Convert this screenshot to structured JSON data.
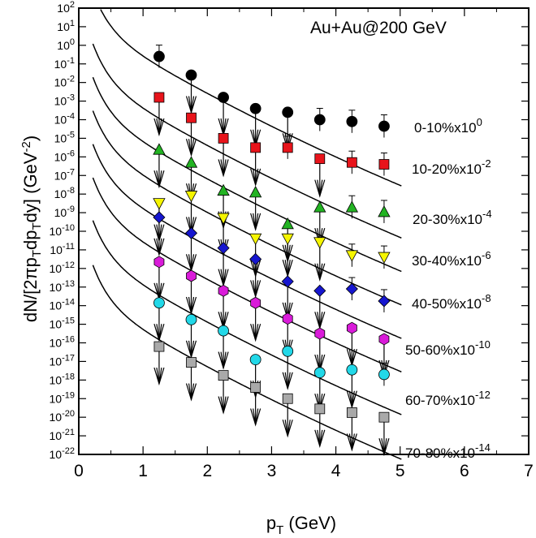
{
  "chart_data": {
    "type": "scatter",
    "title": "Au+Au@200 GeV",
    "xlabel": "p_T (GeV)",
    "ylabel": "dN/[2πp_Tdp_Tdy] (GeV^-2)",
    "xlim": [
      0,
      7
    ],
    "ylim_log10": [
      -22,
      2
    ],
    "xticks": [
      0,
      1,
      2,
      3,
      4,
      5,
      6,
      7
    ],
    "yticks_exponents": [
      2,
      1,
      0,
      -1,
      -2,
      -3,
      -4,
      -5,
      -6,
      -7,
      -8,
      -9,
      -10,
      -11,
      -12,
      -13,
      -14,
      -15,
      -16,
      -17,
      -18,
      -19,
      -20,
      -21,
      -22
    ],
    "x": [
      1.25,
      1.75,
      2.25,
      2.75,
      3.25,
      3.75,
      4.25,
      4.75
    ],
    "series": [
      {
        "name": "0-10%",
        "scale_exp": "0",
        "marker": "circle",
        "color": "#000000",
        "log10_values": [
          -0.6,
          -1.6,
          -2.8,
          -3.4,
          -3.6,
          -4.0,
          -4.1,
          -4.35
        ],
        "upper_limit": [
          false,
          true,
          true,
          true,
          true,
          false,
          false,
          false
        ],
        "curve_start": 0.22
      },
      {
        "name": "10-20%",
        "scale_exp": "-2",
        "marker": "square",
        "color": "#e8141b",
        "log10_values": [
          -2.8,
          -3.9,
          -5.0,
          -5.5,
          -5.5,
          -6.1,
          -6.3,
          -6.4
        ],
        "upper_limit": [
          true,
          true,
          true,
          true,
          false,
          true,
          false,
          false
        ],
        "curve_start": 0.22
      },
      {
        "name": "20-30%",
        "scale_exp": "-4",
        "marker": "triangle-up",
        "color": "#22b322",
        "log10_values": [
          -5.6,
          -6.3,
          -7.8,
          -7.9,
          -9.6,
          -8.7,
          -8.7,
          -8.95
        ],
        "upper_limit": [
          true,
          true,
          true,
          true,
          true,
          true,
          false,
          false
        ],
        "curve_start": 0.22
      },
      {
        "name": "30-40%",
        "scale_exp": "-6",
        "marker": "triangle-down",
        "color": "#f5f500",
        "log10_values": [
          -8.5,
          -8.1,
          -9.3,
          -10.4,
          -10.4,
          -10.6,
          -11.3,
          -11.4
        ],
        "upper_limit": [
          true,
          true,
          true,
          true,
          true,
          true,
          false,
          false
        ],
        "curve_start": 0.22
      },
      {
        "name": "40-50%",
        "scale_exp": "-8",
        "marker": "diamond",
        "color": "#1616cf",
        "log10_values": [
          -9.25,
          -10.1,
          -10.9,
          -11.5,
          -12.7,
          -13.2,
          -13.1,
          -13.75
        ],
        "upper_limit": [
          true,
          true,
          true,
          true,
          true,
          true,
          false,
          false
        ],
        "curve_start": 0.22
      },
      {
        "name": "50-60%",
        "scale_exp": "-10",
        "marker": "hexagon",
        "color": "#d91bd9",
        "log10_values": [
          -11.65,
          -12.4,
          -13.2,
          -13.85,
          -14.7,
          -15.5,
          -15.2,
          -15.8
        ],
        "upper_limit": [
          true,
          true,
          true,
          true,
          true,
          true,
          true,
          true
        ],
        "curve_start": 0.22
      },
      {
        "name": "60-70%",
        "scale_exp": "-12",
        "marker": "circle",
        "color": "#22d8e8",
        "log10_values": [
          -13.85,
          -14.75,
          -15.35,
          -16.9,
          -16.45,
          -17.6,
          -17.45,
          -17.7
        ],
        "upper_limit": [
          true,
          true,
          true,
          true,
          true,
          true,
          true,
          false
        ],
        "curve_start": 0.22
      },
      {
        "name": "70-80%",
        "scale_exp": "-14",
        "marker": "square",
        "color": "#a9a9a9",
        "log10_values": [
          -16.2,
          -17.05,
          -17.75,
          -18.4,
          -19.0,
          -19.55,
          -19.75,
          -20.0
        ],
        "upper_limit": [
          true,
          true,
          true,
          true,
          true,
          true,
          true,
          true
        ],
        "curve_start": 0.22
      }
    ]
  }
}
